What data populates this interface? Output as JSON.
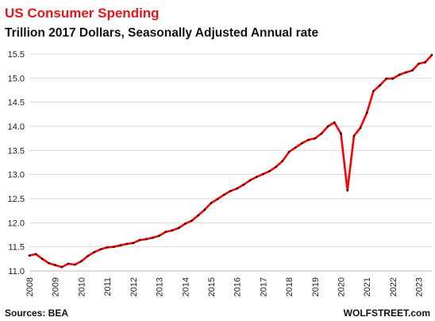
{
  "chart_data": {
    "type": "line",
    "title": "US Consumer Spending",
    "subtitle": "Trillion 2017 Dollars, Seasonally Adjusted Annual rate",
    "source": "Sources: BEA",
    "watermark": "WOLFSTREET.com",
    "categories": [
      "2008",
      null,
      null,
      null,
      "2009",
      null,
      null,
      null,
      "2010",
      null,
      null,
      null,
      "2011",
      null,
      null,
      null,
      "2012",
      null,
      null,
      null,
      "2013",
      null,
      null,
      null,
      "2014",
      null,
      null,
      null,
      "2015",
      null,
      null,
      null,
      "2016",
      null,
      null,
      null,
      "2017",
      null,
      null,
      null,
      "2018",
      null,
      null,
      null,
      "2019",
      null,
      null,
      null,
      "2020",
      null,
      null,
      null,
      "2021",
      null,
      null,
      null,
      "2022",
      null,
      null,
      null,
      "2023",
      null,
      null
    ],
    "series": [
      {
        "name": "US Consumer Spending",
        "color": "#ff0000",
        "marker_color": "#000000",
        "values": [
          11.32,
          11.35,
          11.25,
          11.16,
          11.12,
          11.08,
          11.15,
          11.13,
          11.2,
          11.31,
          11.39,
          11.45,
          11.49,
          11.5,
          11.53,
          11.56,
          11.58,
          11.64,
          11.66,
          11.69,
          11.73,
          11.81,
          11.84,
          11.89,
          11.98,
          12.04,
          12.15,
          12.27,
          12.41,
          12.49,
          12.58,
          12.66,
          12.71,
          12.79,
          12.88,
          12.95,
          13.01,
          13.07,
          13.16,
          13.28,
          13.47,
          13.56,
          13.65,
          13.72,
          13.75,
          13.85,
          14.0,
          14.08,
          13.85,
          12.67,
          13.8,
          13.97,
          14.28,
          14.73,
          14.85,
          14.99,
          14.99,
          15.07,
          15.12,
          15.16,
          15.3,
          15.33,
          15.48
        ]
      }
    ],
    "ylim": [
      11.0,
      15.5
    ],
    "yticks": [
      {
        "value": 11,
        "label": "11.0"
      },
      11.5,
      {
        "value": 12,
        "label": "12.0"
      },
      12.5,
      {
        "value": 13,
        "label": "13.0"
      },
      13.5,
      {
        "value": 14,
        "label": "14.0"
      },
      14.5,
      {
        "value": 15,
        "label": "15.0"
      },
      15.5
    ],
    "grid": true
  }
}
